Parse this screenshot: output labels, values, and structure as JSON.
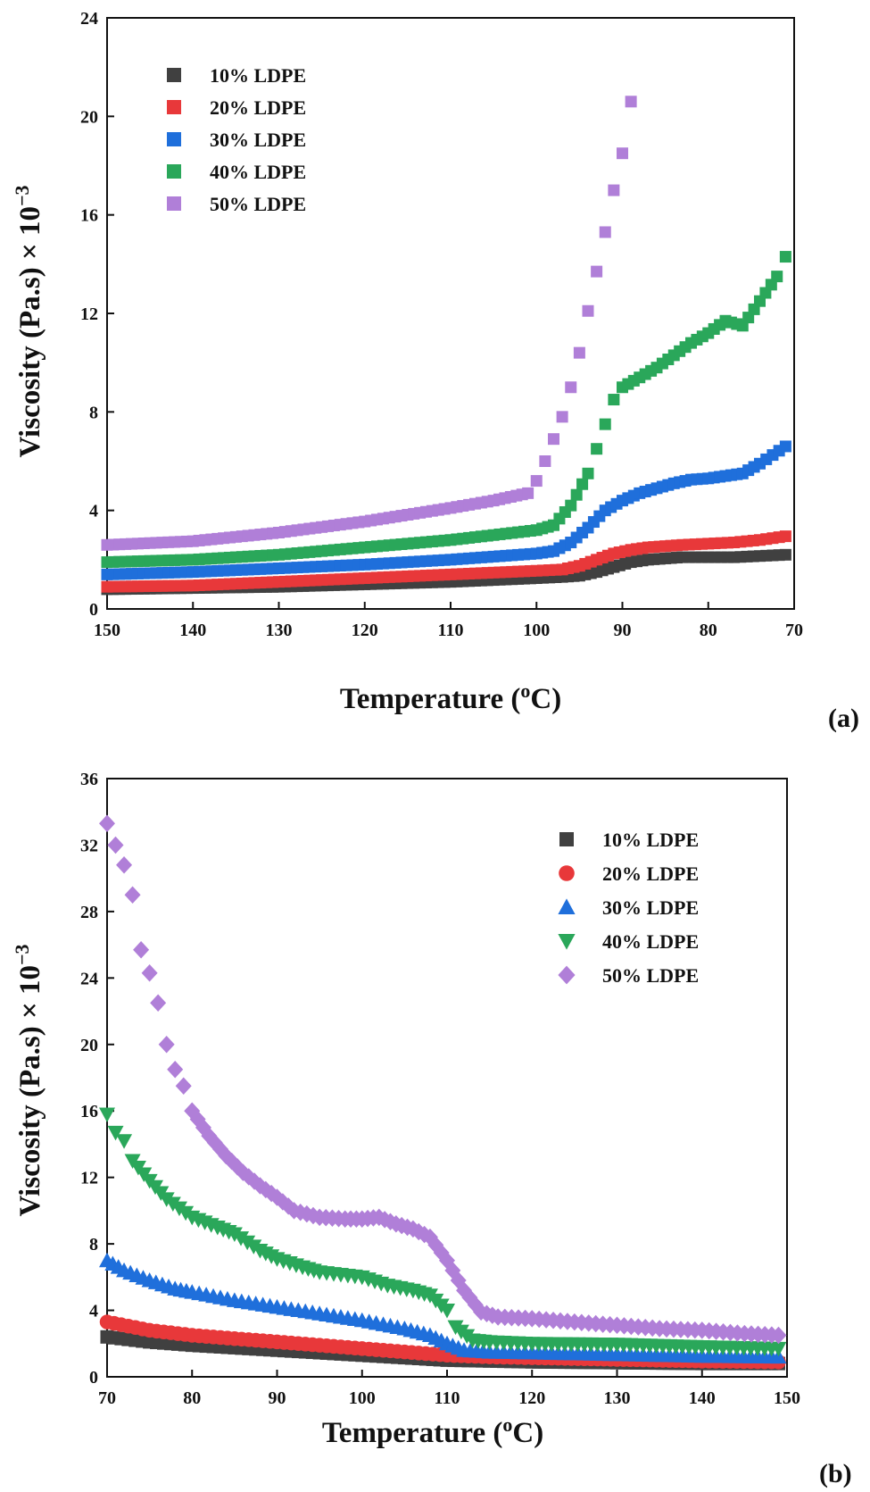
{
  "chart_data": [
    {
      "type": "scatter",
      "panel_label": "(a)",
      "xlabel": "Temperature (",
      "xlabel_sup": "o",
      "xlabel_end": "C)",
      "ylabel": "Viscosity (Pa.s) × 10",
      "ylabel_sup": "−3",
      "xlim": [
        150,
        70
      ],
      "ylim": [
        0,
        24
      ],
      "xticks": [
        150,
        140,
        130,
        120,
        110,
        100,
        90,
        80,
        70
      ],
      "yticks": [
        0,
        4,
        8,
        12,
        16,
        20,
        24
      ],
      "legend_position": "top-left",
      "series": [
        {
          "name": "10% LDPE",
          "color": "#404040",
          "marker": "square",
          "x": [
            150,
            140,
            130,
            120,
            110,
            100,
            97,
            95,
            93,
            91,
            89,
            87,
            85,
            83,
            80,
            77,
            74,
            71
          ],
          "y": [
            0.8,
            0.85,
            0.9,
            1.0,
            1.1,
            1.25,
            1.3,
            1.35,
            1.5,
            1.7,
            1.9,
            2.0,
            2.05,
            2.1,
            2.1,
            2.1,
            2.15,
            2.2
          ]
        },
        {
          "name": "20% LDPE",
          "color": "#e8383a",
          "marker": "square",
          "x": [
            150,
            140,
            130,
            120,
            110,
            100,
            97,
            95,
            93,
            91,
            89,
            87,
            85,
            83,
            80,
            77,
            74,
            71
          ],
          "y": [
            0.9,
            0.95,
            1.1,
            1.25,
            1.4,
            1.55,
            1.6,
            1.75,
            2.0,
            2.25,
            2.4,
            2.5,
            2.55,
            2.6,
            2.65,
            2.7,
            2.8,
            2.95
          ]
        },
        {
          "name": "30% LDPE",
          "color": "#1f6fdb",
          "marker": "square",
          "x": [
            150,
            140,
            130,
            120,
            110,
            100,
            98,
            96,
            94,
            92,
            90,
            88,
            86,
            84,
            82,
            80,
            78,
            76,
            74,
            71
          ],
          "y": [
            1.4,
            1.5,
            1.65,
            1.8,
            2.0,
            2.25,
            2.35,
            2.7,
            3.3,
            4.0,
            4.4,
            4.7,
            4.9,
            5.1,
            5.25,
            5.3,
            5.4,
            5.5,
            5.9,
            6.6
          ]
        },
        {
          "name": "40% LDPE",
          "color": "#2aa75a",
          "marker": "square",
          "x": [
            150,
            140,
            130,
            120,
            110,
            100,
            98,
            96,
            94,
            93,
            92,
            91,
            90,
            88,
            86,
            84,
            82,
            80,
            78,
            76,
            74,
            72,
            71
          ],
          "y": [
            1.9,
            2.0,
            2.2,
            2.5,
            2.8,
            3.2,
            3.4,
            4.2,
            5.5,
            6.5,
            7.5,
            8.5,
            9.0,
            9.4,
            9.8,
            10.3,
            10.8,
            11.2,
            11.7,
            11.5,
            12.5,
            13.5,
            14.3
          ]
        },
        {
          "name": "50% LDPE",
          "color": "#b07fd8",
          "marker": "square",
          "x": [
            150,
            140,
            130,
            120,
            110,
            105,
            101,
            100,
            99,
            98,
            97,
            96,
            95,
            94,
            93,
            92,
            91,
            90,
            89
          ],
          "y": [
            2.6,
            2.75,
            3.1,
            3.55,
            4.1,
            4.4,
            4.7,
            5.2,
            6.0,
            6.9,
            7.8,
            9.0,
            10.4,
            12.1,
            13.7,
            15.3,
            17.0,
            18.5,
            20.6
          ]
        }
      ]
    },
    {
      "type": "scatter",
      "panel_label": "(b)",
      "xlabel": "Temperature (",
      "xlabel_sup": "o",
      "xlabel_end": "C)",
      "ylabel": "Viscosity (Pa.s) × 10",
      "ylabel_sup": "−3",
      "xlim": [
        70,
        150
      ],
      "ylim": [
        0,
        36
      ],
      "xticks": [
        70,
        80,
        90,
        100,
        110,
        120,
        130,
        140,
        150
      ],
      "yticks": [
        0,
        4,
        8,
        12,
        16,
        20,
        24,
        28,
        32,
        36
      ],
      "legend_position": "top-right",
      "series": [
        {
          "name": "10% LDPE",
          "color": "#404040",
          "marker": "square",
          "x": [
            70,
            75,
            80,
            85,
            90,
            95,
            100,
            105,
            110,
            115,
            120,
            130,
            140,
            149
          ],
          "y": [
            2.4,
            2.1,
            1.9,
            1.75,
            1.6,
            1.45,
            1.3,
            1.15,
            1.0,
            0.95,
            0.9,
            0.85,
            0.8,
            0.8
          ]
        },
        {
          "name": "20% LDPE",
          "color": "#e8383a",
          "marker": "circle",
          "x": [
            70,
            75,
            80,
            85,
            90,
            95,
            100,
            105,
            110,
            115,
            120,
            130,
            140,
            149
          ],
          "y": [
            3.3,
            2.8,
            2.5,
            2.3,
            2.1,
            1.9,
            1.7,
            1.5,
            1.3,
            1.2,
            1.15,
            1.05,
            0.95,
            0.9
          ]
        },
        {
          "name": "30% LDPE",
          "color": "#1f6fdb",
          "marker": "triangle-up",
          "x": [
            70,
            72,
            75,
            78,
            80,
            85,
            90,
            95,
            100,
            105,
            108,
            110,
            112,
            115,
            120,
            130,
            140,
            149
          ],
          "y": [
            7.0,
            6.4,
            5.8,
            5.3,
            5.1,
            4.6,
            4.2,
            3.8,
            3.4,
            2.9,
            2.5,
            2.0,
            1.6,
            1.5,
            1.45,
            1.35,
            1.25,
            1.2
          ]
        },
        {
          "name": "40% LDPE",
          "color": "#2aa75a",
          "marker": "triangle-down",
          "x": [
            70,
            71,
            72,
            73,
            75,
            77,
            80,
            83,
            85,
            88,
            90,
            93,
            95,
            100,
            103,
            106,
            108,
            110,
            111,
            113,
            115,
            120,
            130,
            140,
            149
          ],
          "y": [
            15.8,
            14.7,
            14.2,
            13.0,
            11.8,
            10.7,
            9.6,
            9.0,
            8.6,
            7.6,
            7.1,
            6.6,
            6.3,
            6.0,
            5.5,
            5.2,
            4.9,
            4.0,
            3.0,
            2.2,
            2.1,
            2.0,
            1.95,
            1.8,
            1.7
          ]
        },
        {
          "name": "50% LDPE",
          "color": "#b07fd8",
          "marker": "diamond",
          "x": [
            70,
            71,
            72,
            73,
            74,
            75,
            76,
            77,
            78,
            79,
            80,
            82,
            84,
            86,
            88,
            90,
            92,
            95,
            98,
            100,
            102,
            104,
            106,
            108,
            110,
            112,
            114,
            116,
            120,
            125,
            130,
            135,
            140,
            145,
            149
          ],
          "y": [
            33.3,
            32.0,
            30.8,
            29.0,
            25.7,
            24.3,
            22.5,
            20.0,
            18.5,
            17.5,
            16.0,
            14.5,
            13.3,
            12.3,
            11.5,
            10.8,
            10.0,
            9.6,
            9.5,
            9.5,
            9.6,
            9.2,
            8.9,
            8.4,
            7.0,
            5.2,
            3.9,
            3.6,
            3.5,
            3.3,
            3.1,
            2.9,
            2.8,
            2.6,
            2.5
          ]
        }
      ]
    }
  ]
}
